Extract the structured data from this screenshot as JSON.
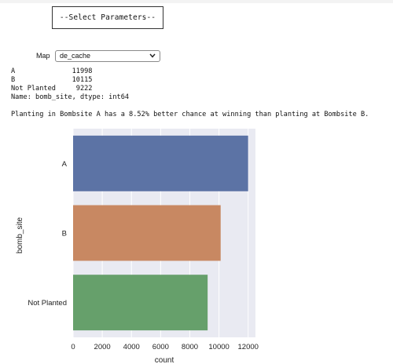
{
  "header": {
    "param_box_text": "--Select Parameters--"
  },
  "map_selector": {
    "label": "Map",
    "value": "de_cache"
  },
  "output": {
    "lines": [
      "A              11998",
      "B              10115",
      "Not Planted     9222",
      "Name: bomb_site, dtype: int64"
    ],
    "planting_text": "Planting in Bombsite A has a 8.52% better chance at winning than planting at Bombsite B."
  },
  "chart_data": {
    "type": "bar",
    "orientation": "horizontal",
    "categories": [
      "A",
      "B",
      "Not Planted"
    ],
    "values": [
      11998,
      10115,
      9222
    ],
    "colors": [
      "#5c73a5",
      "#c88862",
      "#66a06b"
    ],
    "xlabel": "count",
    "ylabel": "bomb_site",
    "xlim": [
      0,
      12500
    ],
    "xticks": [
      0,
      2000,
      4000,
      6000,
      8000,
      10000,
      12000
    ],
    "background": "#e9eaf2",
    "grid": true
  }
}
